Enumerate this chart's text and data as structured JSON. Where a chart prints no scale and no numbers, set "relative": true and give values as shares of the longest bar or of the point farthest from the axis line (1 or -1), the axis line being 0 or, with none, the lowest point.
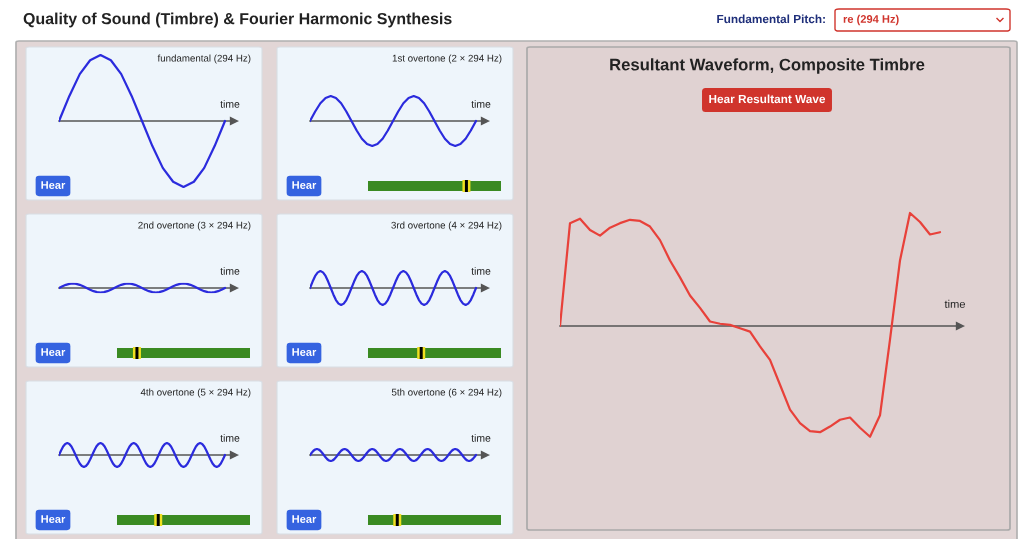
{
  "chart_data": [
    {
      "type": "other",
      "title": "Quality of Sound (Timbre) & Fourier Harmonic Synthesis",
      "annotations": [
        "Fundamental Pitch:",
        "re (294 Hz)"
      ]
    },
    {
      "type": "line",
      "relative": true,
      "title": "fundamental (294 Hz)",
      "xlabel": "time",
      "annotations": [
        "Hear"
      ],
      "categories": [
        null,
        null,
        null,
        null,
        null,
        null,
        null,
        null,
        null,
        null,
        null,
        null,
        null,
        null,
        null,
        null,
        null
      ],
      "series": [
        {
          "color": "#2b2bdd",
          "values": [
            0,
            0.38,
            0.71,
            0.92,
            1,
            0.92,
            0.71,
            0.38,
            0,
            -0.38,
            -0.71,
            -0.92,
            -1,
            -0.92,
            -0.71,
            -0.38,
            0
          ]
        }
      ]
    },
    {
      "type": "line",
      "relative": true,
      "title": "1st overtone (2 × 294 Hz)",
      "xlabel": "time",
      "annotations": [
        "Hear"
      ],
      "categories": [
        null,
        null,
        null,
        null,
        null,
        null,
        null,
        null,
        null,
        null,
        null,
        null,
        null,
        null,
        null,
        null,
        null,
        null,
        null,
        null,
        null,
        null,
        null,
        null,
        null,
        null,
        null,
        null,
        null,
        null,
        null,
        null,
        null
      ],
      "series": [
        {
          "color": "#2b2bdd",
          "values": [
            0,
            0.38,
            0.71,
            0.92,
            1,
            0.92,
            0.71,
            0.38,
            0,
            -0.38,
            -0.71,
            -0.92,
            -1,
            -0.92,
            -0.71,
            -0.38,
            0,
            0.38,
            0.71,
            0.92,
            1,
            0.92,
            0.71,
            0.38,
            0,
            -0.38,
            -0.71,
            -0.92,
            -1,
            -0.92,
            -0.71,
            -0.38,
            0
          ]
        }
      ]
    },
    {
      "type": "line",
      "relative": true,
      "title": "2nd overtone (3 × 294 Hz)",
      "xlabel": "time",
      "annotations": [
        "Hear"
      ],
      "categories": [
        null,
        null,
        null,
        null,
        null,
        null,
        null,
        null,
        null,
        null,
        null,
        null,
        null,
        null,
        null,
        null,
        null,
        null,
        null,
        null,
        null,
        null,
        null,
        null,
        null,
        null,
        null,
        null,
        null,
        null,
        null,
        null,
        null,
        null,
        null,
        null,
        null,
        null,
        null,
        null,
        null,
        null,
        null,
        null,
        null,
        null,
        null,
        null,
        null
      ],
      "series": [
        {
          "color": "#2b2bdd",
          "values": [
            0,
            0.38,
            0.71,
            0.92,
            1,
            0.92,
            0.71,
            0.38,
            0,
            -0.38,
            -0.71,
            -0.92,
            -1,
            -0.92,
            -0.71,
            -0.38,
            0,
            0.38,
            0.71,
            0.92,
            1,
            0.92,
            0.71,
            0.38,
            0,
            -0.38,
            -0.71,
            -0.92,
            -1,
            -0.92,
            -0.71,
            -0.38,
            0,
            0.38,
            0.71,
            0.92,
            1,
            0.92,
            0.71,
            0.38,
            0,
            -0.38,
            -0.71,
            -0.92,
            -1,
            -0.92,
            -0.71,
            -0.38,
            0
          ]
        }
      ]
    },
    {
      "type": "line",
      "relative": true,
      "title": "3rd overtone (4 × 294 Hz)",
      "xlabel": "time",
      "annotations": [
        "Hear"
      ],
      "categories": [
        null,
        null,
        null,
        null,
        null,
        null,
        null,
        null,
        null,
        null,
        null,
        null,
        null,
        null,
        null,
        null,
        null,
        null,
        null,
        null,
        null,
        null,
        null,
        null,
        null,
        null,
        null,
        null,
        null,
        null,
        null,
        null,
        null,
        null,
        null,
        null,
        null,
        null,
        null,
        null,
        null,
        null,
        null,
        null,
        null,
        null,
        null,
        null,
        null,
        null,
        null,
        null,
        null,
        null,
        null,
        null,
        null,
        null,
        null,
        null,
        null,
        null,
        null,
        null,
        null
      ],
      "series": [
        {
          "color": "#2b2bdd",
          "values": [
            0,
            0.38,
            0.71,
            0.92,
            1,
            0.92,
            0.71,
            0.38,
            0,
            -0.38,
            -0.71,
            -0.92,
            -1,
            -0.92,
            -0.71,
            -0.38,
            0,
            0.38,
            0.71,
            0.92,
            1,
            0.92,
            0.71,
            0.38,
            0,
            -0.38,
            -0.71,
            -0.92,
            -1,
            -0.92,
            -0.71,
            -0.38,
            0,
            0.38,
            0.71,
            0.92,
            1,
            0.92,
            0.71,
            0.38,
            0,
            -0.38,
            -0.71,
            -0.92,
            -1,
            -0.92,
            -0.71,
            -0.38,
            0,
            0.38,
            0.71,
            0.92,
            1,
            0.92,
            0.71,
            0.38,
            0,
            -0.38,
            -0.71,
            -0.92,
            -1,
            -0.92,
            -0.71,
            -0.38,
            0
          ]
        }
      ]
    },
    {
      "type": "line",
      "relative": true,
      "title": "4th overtone (5 × 294 Hz)",
      "xlabel": "time",
      "annotations": [
        "Hear"
      ],
      "categories": [
        null,
        null,
        null,
        null,
        null,
        null,
        null,
        null,
        null,
        null,
        null,
        null,
        null,
        null,
        null,
        null,
        null,
        null,
        null,
        null,
        null,
        null,
        null,
        null,
        null,
        null,
        null,
        null,
        null,
        null,
        null,
        null,
        null,
        null,
        null,
        null,
        null,
        null,
        null,
        null,
        null,
        null,
        null,
        null,
        null,
        null,
        null,
        null,
        null,
        null,
        null,
        null,
        null,
        null,
        null,
        null,
        null,
        null,
        null,
        null,
        null,
        null,
        null,
        null,
        null,
        null,
        null,
        null,
        null,
        null,
        null,
        null,
        null,
        null,
        null,
        null,
        null,
        null,
        null,
        null,
        null
      ],
      "series": [
        {
          "color": "#2b2bdd",
          "values": [
            0,
            0.38,
            0.71,
            0.92,
            1,
            0.92,
            0.71,
            0.38,
            0,
            -0.38,
            -0.71,
            -0.92,
            -1,
            -0.92,
            -0.71,
            -0.38,
            0,
            0.38,
            0.71,
            0.92,
            1,
            0.92,
            0.71,
            0.38,
            0,
            -0.38,
            -0.71,
            -0.92,
            -1,
            -0.92,
            -0.71,
            -0.38,
            0,
            0.38,
            0.71,
            0.92,
            1,
            0.92,
            0.71,
            0.38,
            0,
            -0.38,
            -0.71,
            -0.92,
            -1,
            -0.92,
            -0.71,
            -0.38,
            0,
            0.38,
            0.71,
            0.92,
            1,
            0.92,
            0.71,
            0.38,
            0,
            -0.38,
            -0.71,
            -0.92,
            -1,
            -0.92,
            -0.71,
            -0.38,
            0,
            0.38,
            0.71,
            0.92,
            1,
            0.92,
            0.71,
            0.38,
            0,
            -0.38,
            -0.71,
            -0.92,
            -1,
            -0.92,
            -0.71,
            -0.38,
            0
          ]
        }
      ]
    },
    {
      "type": "line",
      "relative": true,
      "title": "5th overtone (6 × 294 Hz)",
      "xlabel": "time",
      "annotations": [
        "Hear"
      ],
      "categories": [
        null,
        null,
        null,
        null,
        null,
        null,
        null,
        null,
        null,
        null,
        null,
        null,
        null,
        null,
        null,
        null,
        null,
        null,
        null,
        null,
        null,
        null,
        null,
        null,
        null,
        null,
        null,
        null,
        null,
        null,
        null,
        null,
        null,
        null,
        null,
        null,
        null,
        null,
        null,
        null,
        null,
        null,
        null,
        null,
        null,
        null,
        null,
        null,
        null,
        null,
        null,
        null,
        null,
        null,
        null,
        null,
        null,
        null,
        null,
        null,
        null,
        null,
        null,
        null,
        null,
        null,
        null,
        null,
        null,
        null,
        null,
        null,
        null,
        null,
        null,
        null,
        null,
        null,
        null,
        null,
        null,
        null,
        null,
        null,
        null,
        null,
        null,
        null,
        null,
        null,
        null,
        null,
        null,
        null,
        null,
        null,
        null
      ],
      "series": [
        {
          "color": "#2b2bdd",
          "values": [
            0,
            0.38,
            0.71,
            0.92,
            1,
            0.92,
            0.71,
            0.38,
            0,
            -0.38,
            -0.71,
            -0.92,
            -1,
            -0.92,
            -0.71,
            -0.38,
            0,
            0.38,
            0.71,
            0.92,
            1,
            0.92,
            0.71,
            0.38,
            0,
            -0.38,
            -0.71,
            -0.92,
            -1,
            -0.92,
            -0.71,
            -0.38,
            0,
            0.38,
            0.71,
            0.92,
            1,
            0.92,
            0.71,
            0.38,
            0,
            -0.38,
            -0.71,
            -0.92,
            -1,
            -0.92,
            -0.71,
            -0.38,
            0,
            0.38,
            0.71,
            0.92,
            1,
            0.92,
            0.71,
            0.38,
            0,
            -0.38,
            -0.71,
            -0.92,
            -1,
            -0.92,
            -0.71,
            -0.38,
            0,
            0.38,
            0.71,
            0.92,
            1,
            0.92,
            0.71,
            0.38,
            0,
            -0.38,
            -0.71,
            -0.92,
            -1,
            -0.92,
            -0.71,
            -0.38,
            0,
            0.38,
            0.71,
            0.92,
            1,
            0.92,
            0.71,
            0.38,
            0,
            -0.38,
            -0.71,
            -0.92,
            -1,
            -0.92,
            -0.71,
            -0.38,
            0
          ]
        }
      ]
    },
    {
      "type": "line",
      "relative": true,
      "title": "Resultant Waveform, Composite Timbre",
      "xlabel": "time",
      "annotations": [
        "Hear Resultant Wave"
      ],
      "categories": [
        null,
        null,
        null,
        null,
        null,
        null,
        null,
        null,
        null,
        null,
        null,
        null,
        null,
        null,
        null,
        null,
        null,
        null,
        null,
        null,
        null,
        null,
        null,
        null,
        null,
        null,
        null,
        null,
        null,
        null,
        null,
        null,
        null,
        null,
        null,
        null,
        null,
        null,
        null
      ],
      "series": [
        {
          "color": "#e8413a",
          "values": [
            0,
            0.91,
            0.95,
            0.85,
            0.8,
            0.87,
            0.91,
            0.94,
            0.93,
            0.88,
            0.76,
            0.58,
            0.43,
            0.27,
            0.16,
            0.04,
            0.02,
            0.01,
            -0.02,
            -0.05,
            -0.18,
            -0.3,
            -0.52,
            -0.74,
            -0.86,
            -0.93,
            -0.94,
            -0.89,
            -0.83,
            -0.81,
            -0.9,
            -0.98,
            -0.79,
            -0.12,
            0.58,
            1,
            0.92,
            0.81,
            0.83
          ]
        }
      ]
    }
  ]
}
